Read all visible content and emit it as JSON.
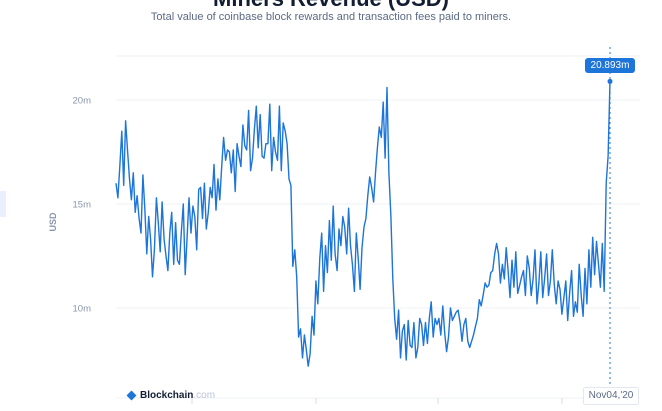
{
  "header": {
    "title": "Miners Revenue (USD)",
    "subtitle": "Total value of coinbase block rewards and transaction fees paid to miners."
  },
  "watermark": {
    "brand": "Blockchain",
    "suffix": ".com"
  },
  "tooltip": {
    "value_label": "20.893m"
  },
  "crosshair_date_label": "Nov04,'20",
  "colors": {
    "line": "#1d74d9",
    "grid": "#eef1f6",
    "text": "#8a96ab"
  },
  "chart_data": {
    "type": "line",
    "title": "Miners Revenue (USD)",
    "subtitle": "Total value of coinbase block rewards and transaction fees paid to miners.",
    "ylabel": "USD",
    "yticks": [
      "10m",
      "15m",
      "20m"
    ],
    "ytick_values": [
      10,
      15,
      20
    ],
    "ylim": [
      6.1,
      22.2
    ],
    "grid": true,
    "series": [
      {
        "values": [
          16.0,
          15.3,
          16.8,
          18.5,
          15.9,
          19.0,
          17.6,
          16.2,
          15.2,
          16.5,
          14.6,
          15.4,
          14.3,
          13.6,
          16.4,
          14.8,
          12.6,
          14.4,
          13.3,
          11.5,
          12.8,
          15.3,
          14.1,
          12.7,
          15.1,
          13.3,
          12.5,
          11.8,
          13.6,
          14.6,
          12.1,
          14.1,
          12.3,
          12.1,
          13.7,
          15.0,
          11.6,
          13.4,
          15.3,
          13.6,
          14.9,
          14.4,
          12.8,
          15.7,
          15.8,
          14.3,
          16.0,
          13.8,
          14.6,
          15.8,
          15.3,
          16.9,
          14.7,
          16.2,
          15.2,
          16.8,
          18.2,
          17.1,
          17.6,
          17.5,
          16.5,
          17.6,
          15.6,
          17.9,
          17.3,
          16.8,
          18.8,
          17.8,
          17.6,
          19.5,
          16.6,
          17.2,
          18.6,
          19.7,
          17.7,
          19.3,
          17.3,
          17.2,
          17.9,
          17.9,
          19.8,
          16.6,
          18.2,
          17.5,
          17.1,
          19.7,
          16.6,
          18.9,
          18.5,
          17.9,
          16.2,
          15.9,
          12.0,
          12.8,
          11.5,
          8.6,
          9.0,
          7.6,
          8.7,
          8.0,
          7.2,
          7.8,
          9.6,
          8.7,
          11.3,
          10.2,
          12.4,
          13.6,
          10.8,
          13.0,
          11.7,
          14.2,
          12.3,
          14.9,
          12.6,
          11.8,
          13.8,
          13.0,
          14.4,
          13.9,
          12.6,
          14.8,
          13.0,
          12.1,
          10.8,
          13.6,
          12.4,
          10.9,
          12.9,
          13.9,
          14.3,
          15.4,
          16.3,
          15.8,
          15.1,
          16.5,
          17.7,
          18.7,
          18.2,
          19.9,
          17.2,
          20.6,
          16.5,
          14.4,
          11.4,
          9.5,
          8.5,
          9.9,
          7.6,
          8.9,
          9.2,
          7.5,
          9.4,
          8.2,
          8.1,
          9.3,
          7.6,
          8.1,
          9.5,
          9.2,
          8.2,
          9.3,
          8.3,
          9.5,
          10.3,
          8.6,
          9.5,
          9.2,
          9.5,
          8.7,
          10.1,
          8.8,
          7.9,
          8.6,
          10.0,
          9.4,
          9.6,
          9.8,
          9.9,
          9.3,
          8.4,
          9.2,
          9.5,
          8.4,
          8.1,
          8.4,
          8.7,
          9.1,
          9.5,
          10.4,
          10.1,
          10.6,
          11.2,
          11.0,
          11.1,
          11.7,
          11.8,
          12.6,
          13.1,
          12.6,
          11.2,
          12.1,
          11.4,
          12.9,
          11.8,
          10.5,
          12.3,
          11.0,
          12.7,
          10.7,
          11.1,
          11.5,
          11.8,
          10.6,
          12.5,
          11.9,
          10.6,
          11.4,
          12.8,
          10.2,
          11.2,
          12.7,
          10.5,
          11.4,
          12.6,
          10.6,
          11.3,
          12.8,
          11.1,
          10.2,
          11.3,
          10.9,
          9.7,
          10.5,
          11.3,
          9.4,
          10.7,
          11.8,
          9.6,
          10.3,
          9.8,
          12.1,
          10.6,
          9.6,
          11.9,
          10.2,
          12.8,
          11.0,
          13.4,
          11.6,
          13.2,
          12.1,
          11.0,
          13.1,
          10.8,
          16.0,
          17.3,
          20.9
        ]
      }
    ],
    "x_end_label": "Nov04,'20",
    "last_value": 20.893
  }
}
